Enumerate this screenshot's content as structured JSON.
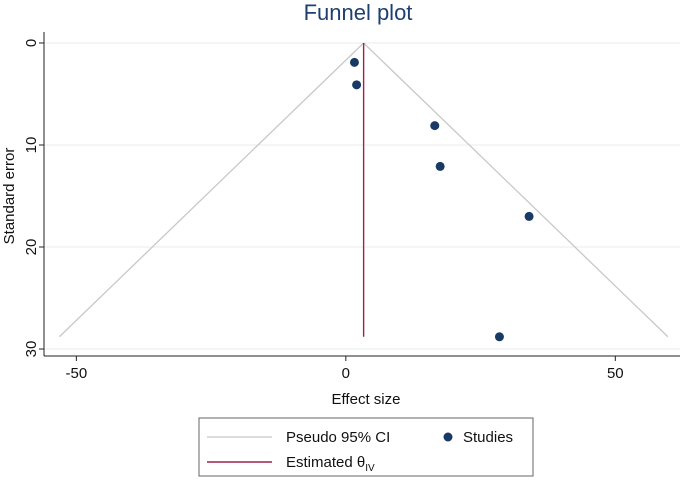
{
  "chart_data": {
    "type": "scatter",
    "title": "Funnel plot",
    "xlabel": "Effect size",
    "ylabel": "Standard error",
    "xlim": [
      -56,
      62
    ],
    "ylim": [
      0,
      30
    ],
    "y_reversed": true,
    "x_ticks": [
      -50,
      0,
      50
    ],
    "y_ticks": [
      0,
      10,
      20,
      30
    ],
    "grid": "horizontal",
    "legend_position": "bottom",
    "studies": {
      "name": "Studies",
      "color": "#1a3a66",
      "points": [
        {
          "x": 1.6,
          "y": 1.9
        },
        {
          "x": 2.0,
          "y": 4.1
        },
        {
          "x": 16.5,
          "y": 8.1
        },
        {
          "x": 17.5,
          "y": 12.1
        },
        {
          "x": 34.0,
          "y": 17.0
        },
        {
          "x": 28.5,
          "y": 28.8
        }
      ]
    },
    "estimate": {
      "name": "Estimated θ",
      "subscript": "IV",
      "color": "#a0204a",
      "x": 3.3,
      "y_range": [
        0,
        28.8
      ]
    },
    "ci": {
      "name": "Pseudo 95% CI",
      "color": "#c8c8c8",
      "center_x": 3.3,
      "max_se": 28.8,
      "z": 1.96
    }
  }
}
